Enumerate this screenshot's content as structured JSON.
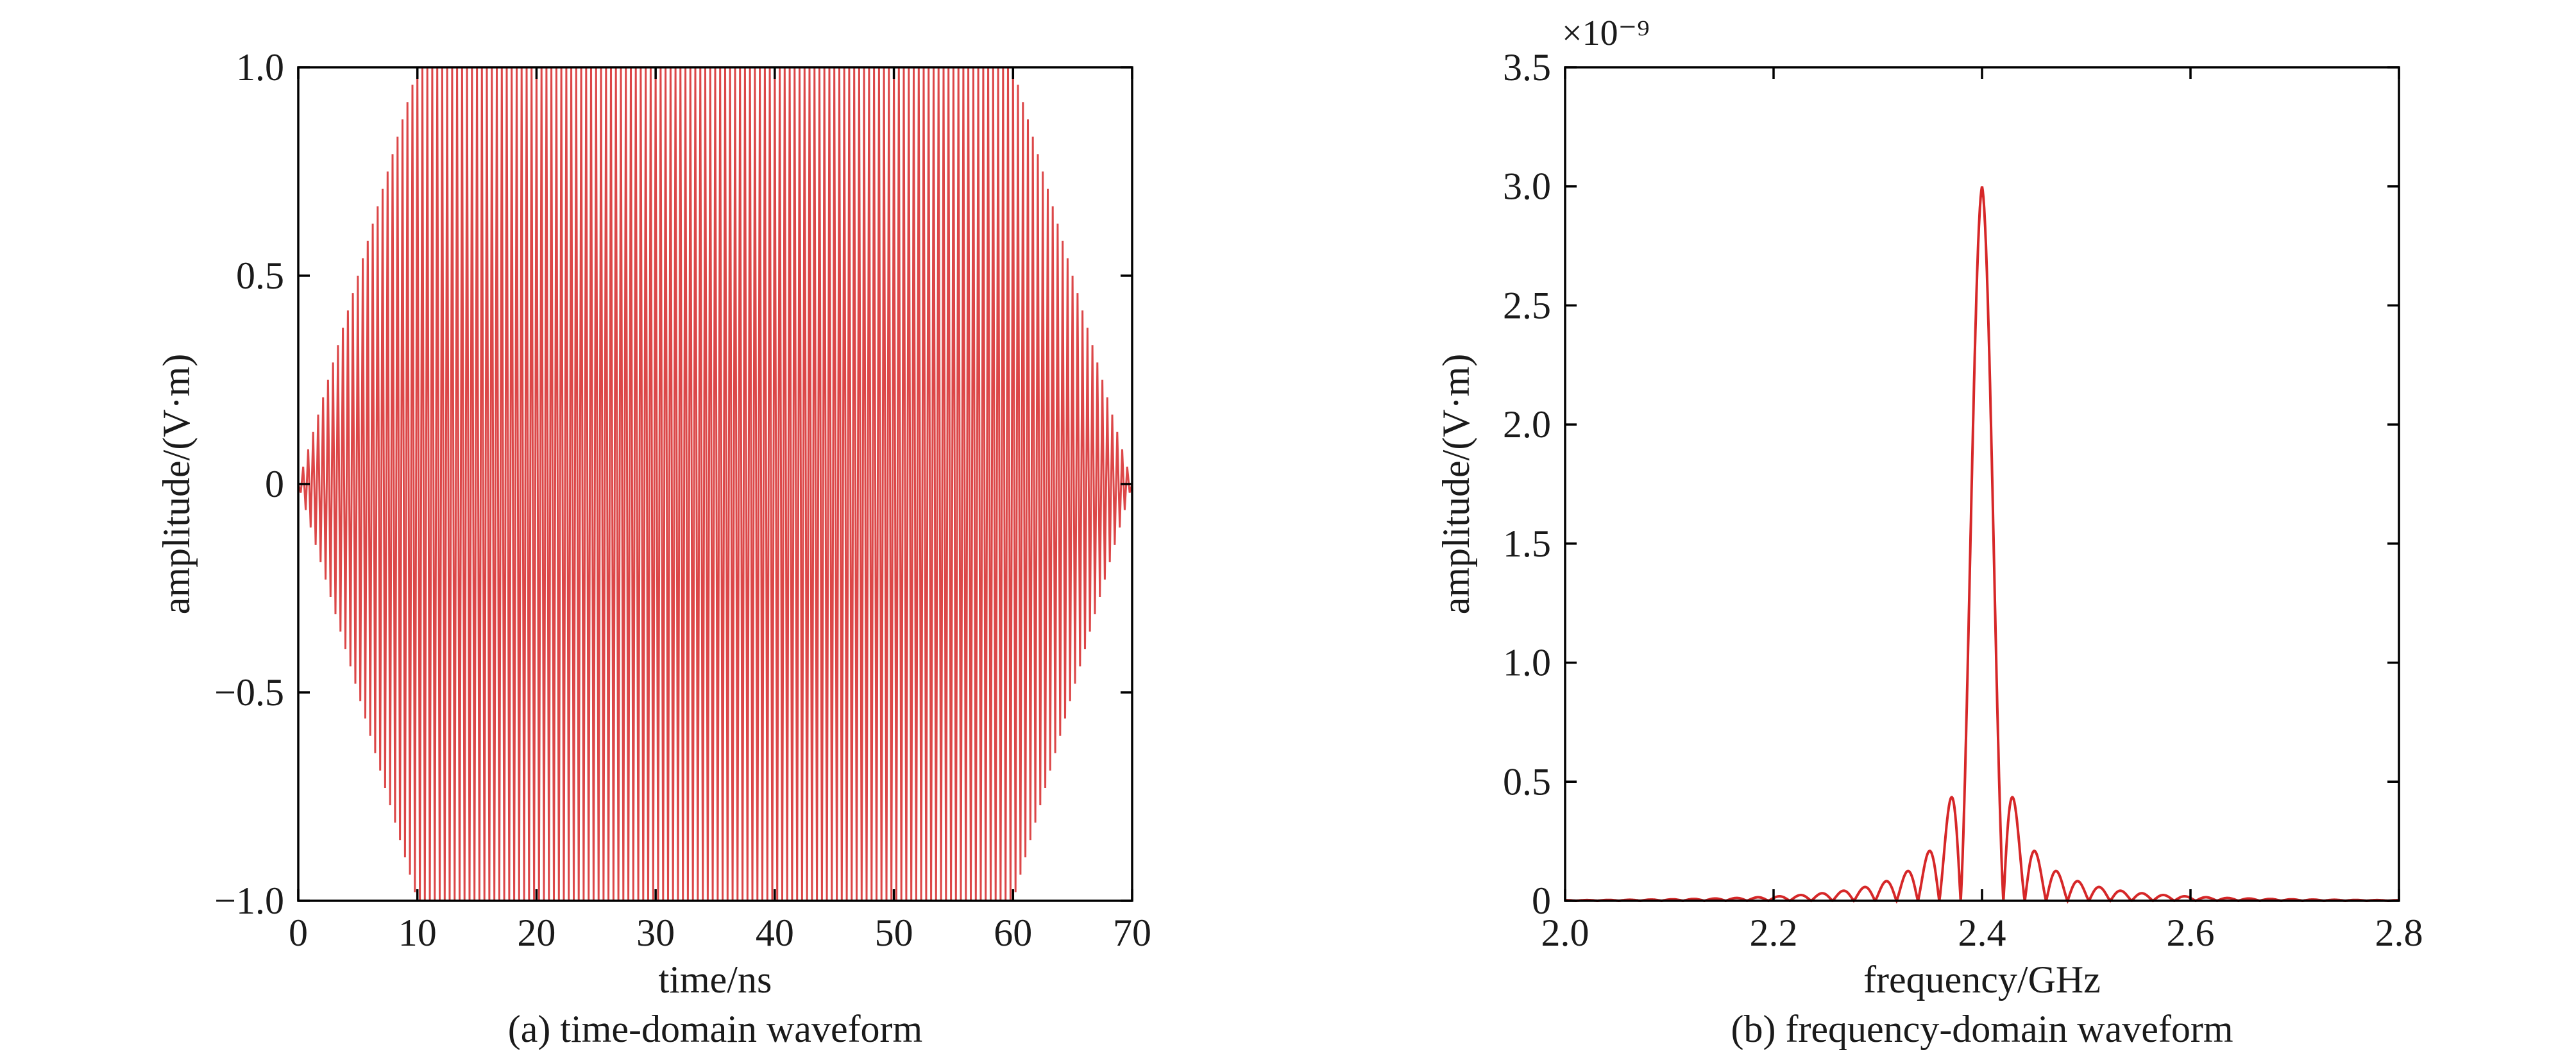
{
  "chart_data": [
    {
      "type": "line",
      "caption": "(a) time-domain waveform",
      "xlabel": "time/ns",
      "ylabel": "amplitude/(V·m)",
      "xlim": [
        0,
        70
      ],
      "ylim": [
        -1.0,
        1.0
      ],
      "x_ticks": [
        0,
        10,
        20,
        30,
        40,
        50,
        60,
        70
      ],
      "x_tick_labels": [
        "0",
        "10",
        "20",
        "30",
        "40",
        "50",
        "60",
        "70"
      ],
      "y_ticks": [
        -1.0,
        -0.5,
        0,
        0.5,
        1.0
      ],
      "y_tick_labels": [
        "−1.0",
        "−0.5",
        "0",
        "0.5",
        "1.0"
      ],
      "grid": false,
      "color": "#d62728",
      "series": [
        {
          "description_values": {
            "carrier_frequency_GHz": 2.4,
            "envelope_time_ns": [
              0,
              10,
              60,
              70
            ],
            "envelope_amplitude": [
              0,
              1.0,
              1.0,
              0
            ]
          }
        }
      ]
    },
    {
      "type": "line",
      "caption": "(b) frequency-domain waveform",
      "xlabel": "frequency/GHz",
      "ylabel": "amplitude/(V·m)",
      "y_exponent_label": "×10⁻⁹",
      "xlim": [
        2.0,
        2.8
      ],
      "ylim": [
        0,
        3.5
      ],
      "x_ticks": [
        2.0,
        2.2,
        2.4,
        2.6,
        2.8
      ],
      "x_tick_labels": [
        "2.0",
        "2.2",
        "2.4",
        "2.6",
        "2.8"
      ],
      "y_ticks": [
        0,
        0.5,
        1.0,
        1.5,
        2.0,
        2.5,
        3.0,
        3.5
      ],
      "y_tick_labels": [
        "0",
        "0.5",
        "1.0",
        "1.5",
        "2.0",
        "2.5",
        "3.0",
        "3.5"
      ],
      "grid": false,
      "color": "#d62728",
      "series": [
        {
          "peak_frequency_GHz": 2.4,
          "peak_amplitude": 3.0,
          "sidelobes": [
            {
              "x": 2.377,
              "y": 0.6
            },
            {
              "x": 2.423,
              "y": 0.6
            },
            {
              "x": 2.358,
              "y": 0.3
            },
            {
              "x": 2.442,
              "y": 0.3
            },
            {
              "x": 2.343,
              "y": 0.15
            },
            {
              "x": 2.457,
              "y": 0.15
            },
            {
              "x": 2.329,
              "y": 0.07
            },
            {
              "x": 2.471,
              "y": 0.07
            },
            {
              "x": 2.3,
              "y": 0.03
            },
            {
              "x": 2.5,
              "y": 0.03
            },
            {
              "x": 2.26,
              "y": 0.02
            },
            {
              "x": 2.54,
              "y": 0.02
            }
          ]
        }
      ]
    }
  ]
}
